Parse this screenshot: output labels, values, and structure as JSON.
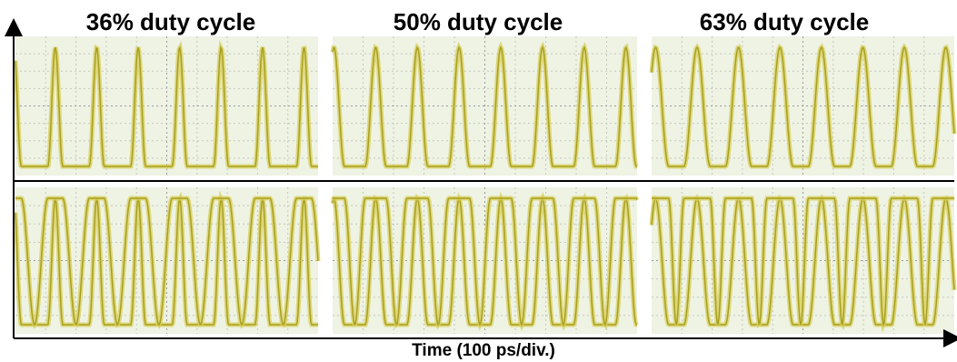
{
  "panel_titles": [
    "36% duty cycle",
    "50% duty cycle",
    "63% duty cycle"
  ],
  "x_axis_label": "Time (100 ps/div.)"
}
